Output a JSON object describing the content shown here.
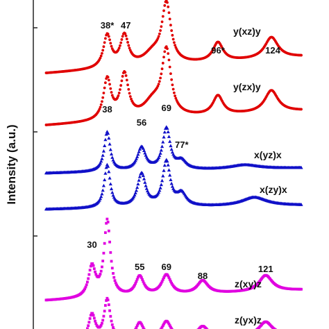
{
  "chart_data": {
    "type": "line",
    "ylabel": "Intensity (a.u.)",
    "ylabel_unit_note": "",
    "x_range": [
      0,
      140
    ],
    "y_ticks_visible": true,
    "grid": false,
    "series": [
      {
        "name": "y(xz)y",
        "color": "#e00000",
        "marker": "circle",
        "peak_labels": [
          "38*",
          "47",
          "96*",
          "124"
        ],
        "peaks": [
          {
            "x": 38,
            "h": 0.55,
            "w": 2.4
          },
          {
            "x": 47,
            "h": 0.52,
            "w": 2.6
          },
          {
            "x": 62,
            "h": 0.2,
            "w": 6.0
          },
          {
            "x": 69,
            "h": 1.0,
            "w": 2.8
          },
          {
            "x": 96,
            "h": 0.32,
            "w": 3.2
          },
          {
            "x": 124,
            "h": 0.36,
            "w": 4.2
          }
        ]
      },
      {
        "name": "y(zx)y",
        "color": "#e00000",
        "marker": "circle",
        "peak_labels": [],
        "peaks": [
          {
            "x": 38,
            "h": 0.56,
            "w": 2.4
          },
          {
            "x": 47,
            "h": 0.6,
            "w": 2.6
          },
          {
            "x": 62,
            "h": 0.22,
            "w": 6.0
          },
          {
            "x": 69,
            "h": 0.88,
            "w": 2.8
          },
          {
            "x": 96,
            "h": 0.26,
            "w": 3.2
          },
          {
            "x": 124,
            "h": 0.3,
            "w": 4.2
          }
        ]
      },
      {
        "name": "x(yz)x",
        "color": "#1010c8",
        "marker": "triangle",
        "peak_labels": [
          "38",
          "56",
          "69",
          "77*"
        ],
        "peaks": [
          {
            "x": 38,
            "h": 0.95,
            "w": 1.9
          },
          {
            "x": 56,
            "h": 0.55,
            "w": 2.6
          },
          {
            "x": 69,
            "h": 1.0,
            "w": 2.4
          },
          {
            "x": 77,
            "h": 0.2,
            "w": 3.0
          },
          {
            "x": 110,
            "h": 0.1,
            "w": 9.0
          }
        ]
      },
      {
        "name": "x(zy)x",
        "color": "#1010c8",
        "marker": "triangle",
        "peak_labels": [],
        "peaks": [
          {
            "x": 38,
            "h": 0.88,
            "w": 1.9
          },
          {
            "x": 56,
            "h": 0.68,
            "w": 2.6
          },
          {
            "x": 69,
            "h": 0.92,
            "w": 2.4
          },
          {
            "x": 77,
            "h": 0.25,
            "w": 3.0
          },
          {
            "x": 115,
            "h": 0.18,
            "w": 8.0
          }
        ]
      },
      {
        "name": "z(xy)z",
        "color": "#e000e0",
        "marker": "square",
        "peak_labels": [
          "30",
          "55",
          "69",
          "88",
          "121"
        ],
        "peaks": [
          {
            "x": 30,
            "h": 0.4,
            "w": 2.2
          },
          {
            "x": 38,
            "h": 1.0,
            "w": 2.0
          },
          {
            "x": 55,
            "h": 0.25,
            "w": 2.6
          },
          {
            "x": 69,
            "h": 0.26,
            "w": 3.0
          },
          {
            "x": 88,
            "h": 0.17,
            "w": 3.4
          },
          {
            "x": 121,
            "h": 0.21,
            "w": 4.2
          }
        ]
      },
      {
        "name": "z(yx)z",
        "color": "#e000e0",
        "marker": "square",
        "peak_labels": [],
        "peaks": [
          {
            "x": 30,
            "h": 0.4,
            "w": 2.2
          },
          {
            "x": 38,
            "h": 0.62,
            "w": 2.0
          },
          {
            "x": 55,
            "h": 0.25,
            "w": 2.6
          },
          {
            "x": 69,
            "h": 0.26,
            "w": 3.0
          },
          {
            "x": 88,
            "h": 0.17,
            "w": 3.4
          },
          {
            "x": 121,
            "h": 0.21,
            "w": 4.2
          }
        ]
      }
    ]
  }
}
